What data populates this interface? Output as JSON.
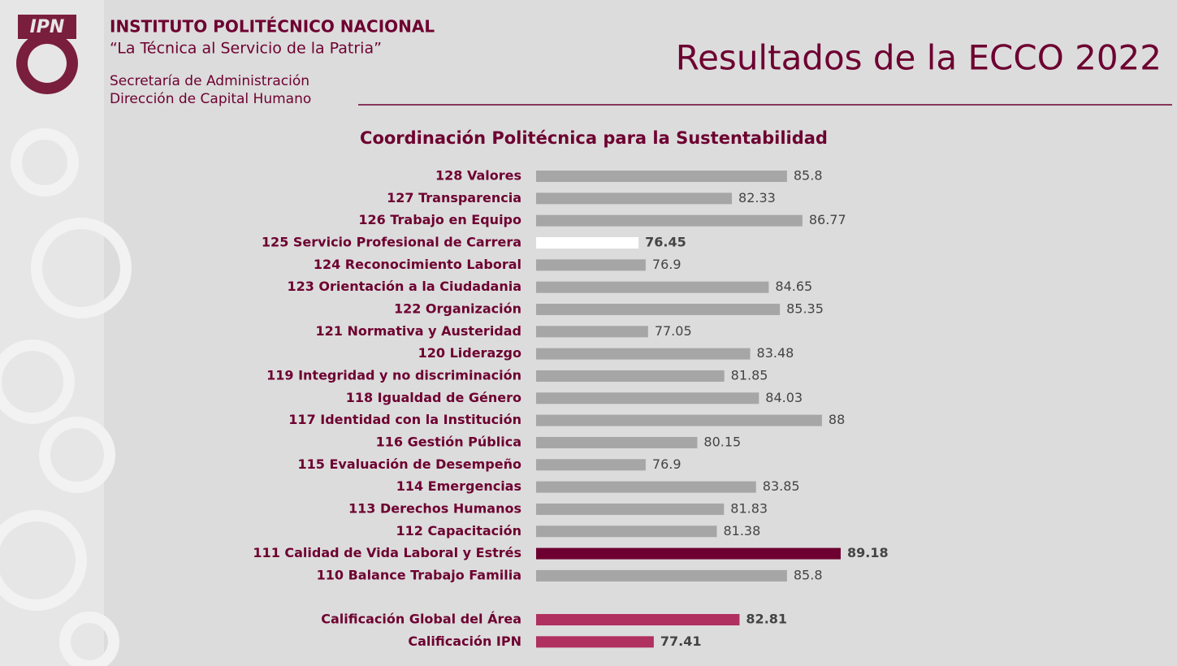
{
  "header": {
    "logo_text": "IPN",
    "institution": "INSTITUTO POLITÉCNICO NACIONAL",
    "motto": "“La Técnica al Servicio de la Patria”",
    "unit_1": "Secretaría de Administración",
    "unit_2": "Dirección de Capital Humano",
    "title": "Resultados de la ECCO 2022"
  },
  "chart_data": [
    {
      "type": "bar",
      "orientation": "horizontal",
      "title": "Coordinación Politécnica para la Sustentabilidad",
      "categories": [
        "128 Valores",
        "127 Transparencia",
        "126 Trabajo en Equipo",
        "125 Servicio Profesional de Carrera",
        "124 Reconocimiento Laboral",
        "123 Orientación a la Ciudadania",
        "122 Organización",
        "121 Normativa y Austeridad",
        "120 Liderazgo",
        "119 Integridad y no discriminación",
        "118 Igualdad de Género",
        "117 Identidad con la Institución",
        "116 Gestión Pública",
        "115 Evaluación de Desempeño",
        "114 Emergencias",
        "113 Derechos Humanos",
        "112 Capacitación",
        "111 Calidad de Vida Laboral y Estrés",
        "110 Balance Trabajo Familia"
      ],
      "values": [
        85.8,
        82.33,
        86.77,
        76.45,
        76.9,
        84.65,
        85.35,
        77.05,
        83.48,
        81.85,
        84.03,
        88,
        80.15,
        76.9,
        83.85,
        81.83,
        81.38,
        89.18,
        85.8
      ],
      "color": "#a6a6a6",
      "colors": [
        "#a6a6a6",
        "#a6a6a6",
        "#a6a6a6",
        "#ffffff",
        "#a6a6a6",
        "#a6a6a6",
        "#a6a6a6",
        "#a6a6a6",
        "#a6a6a6",
        "#a6a6a6",
        "#a6a6a6",
        "#a6a6a6",
        "#a6a6a6",
        "#a6a6a6",
        "#a6a6a6",
        "#a6a6a6",
        "#a6a6a6",
        "#6d0030",
        "#a6a6a6"
      ],
      "xlim": [
        70,
        90
      ]
    },
    {
      "type": "bar",
      "orientation": "horizontal",
      "categories": [
        "Calificación Global del Área",
        "Calificación IPN"
      ],
      "values": [
        82.81,
        77.41
      ],
      "color": "#b03060",
      "colors": [
        "#b03060",
        "#b03060"
      ],
      "xlim": [
        70,
        90
      ]
    }
  ]
}
